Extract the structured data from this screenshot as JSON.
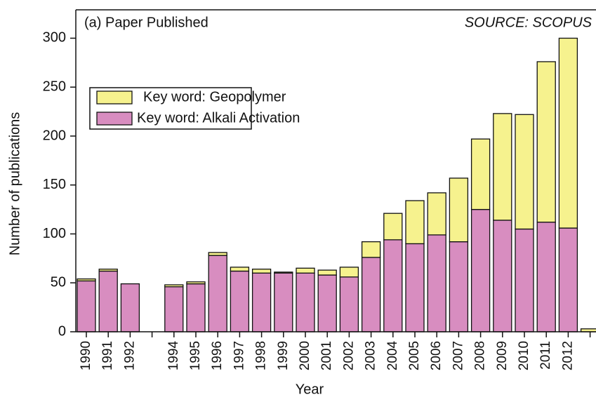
{
  "chart_data": {
    "type": "stacked_bar",
    "title": "(a) Paper Published",
    "annotation": "SOURCE: SCOPUS",
    "xlabel": "Year",
    "ylabel": "Number of publications",
    "categories": [
      "1990",
      "1991",
      "1992",
      null,
      "1994",
      "1995",
      "1996",
      "1997",
      "1998",
      "1999",
      "2000",
      "2001",
      "2002",
      "2003",
      "2004",
      "2005",
      "2006",
      "2007",
      "2008",
      "2009",
      "2010",
      "2011",
      "2012",
      null
    ],
    "series": [
      {
        "name": "Key word: Alkali Activation",
        "color": "#d88dc0",
        "values": [
          52,
          62,
          49,
          null,
          46,
          49,
          78,
          62,
          60,
          60,
          60,
          58,
          56,
          76,
          94,
          90,
          99,
          92,
          125,
          114,
          105,
          112,
          106,
          0
        ]
      },
      {
        "name": "Key word: Geopolymer",
        "color": "#f6f28e",
        "values": [
          2,
          2,
          0,
          null,
          2,
          2,
          3,
          4,
          4,
          1,
          5,
          5,
          10,
          16,
          27,
          44,
          43,
          65,
          72,
          109,
          117,
          164,
          194,
          3
        ]
      }
    ],
    "ylim": [
      0,
      329
    ],
    "yticks": [
      0,
      50,
      100,
      150,
      200,
      250,
      300
    ],
    "legend": "upper left"
  }
}
